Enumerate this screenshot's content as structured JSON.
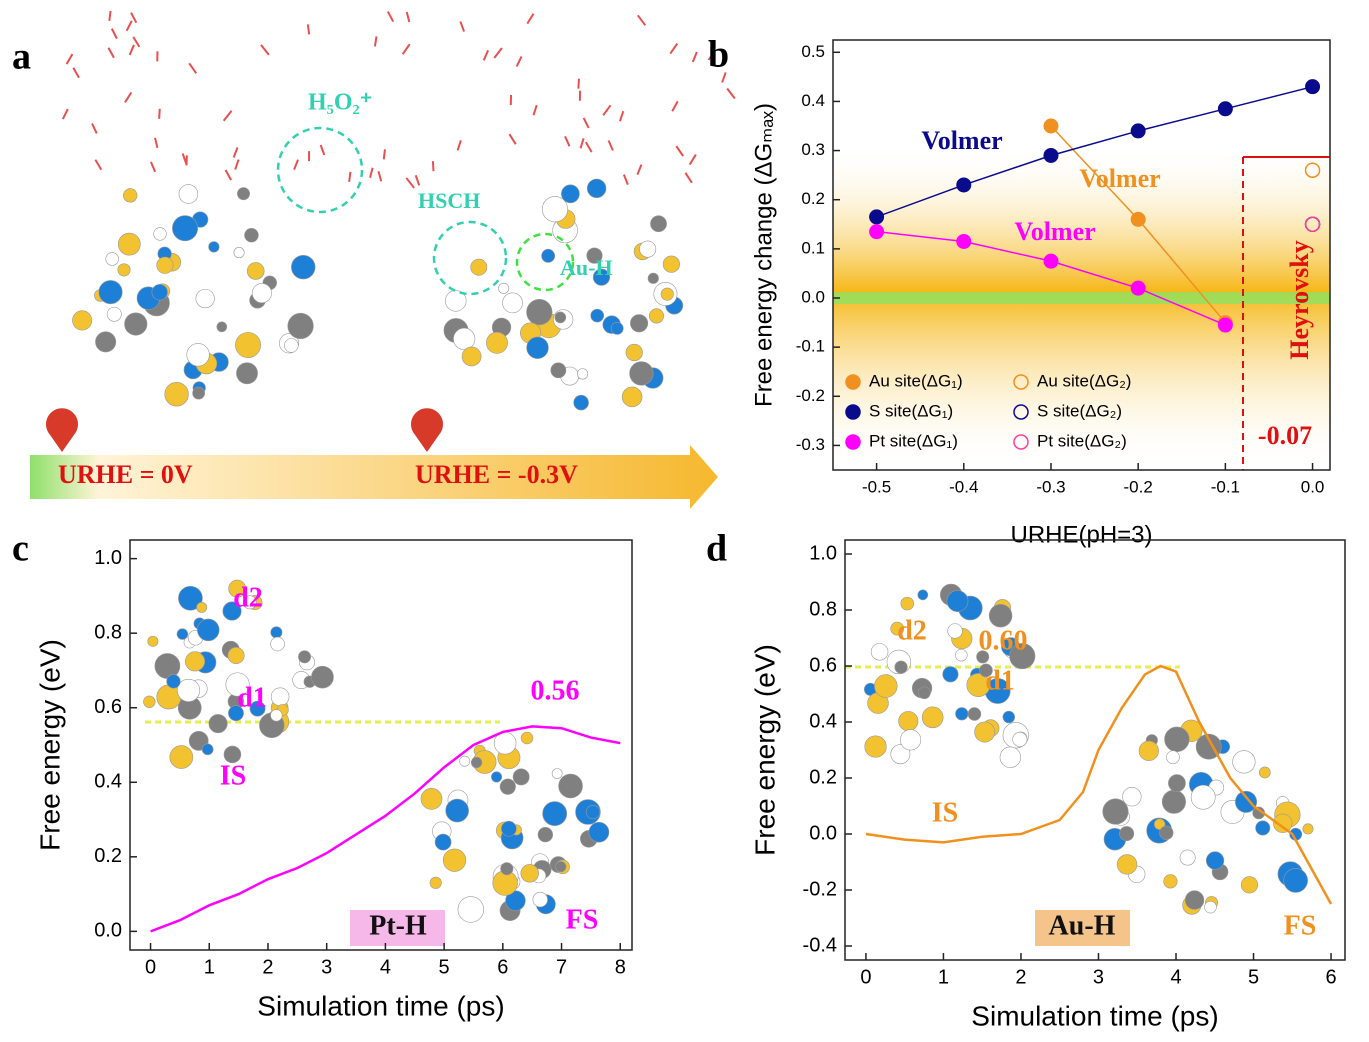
{
  "panel_a": {
    "label": "a",
    "texts": [
      "H₅O₂⁺",
      "HSCH",
      "Au-H",
      "URHE = 0V",
      "URHE = -0.3V"
    ]
  },
  "chart_data": [
    {
      "type": "line",
      "panel": "b",
      "y_label": "Free energy change (ΔGₘₐₓ)",
      "x_label": "URHE(pH=3)",
      "x": [
        -0.5,
        -0.4,
        -0.3,
        -0.2,
        -0.1,
        0.0
      ],
      "xlim": [
        -0.55,
        0.02
      ],
      "ylim": [
        -0.35,
        0.525
      ],
      "xticks": [
        -0.5,
        -0.4,
        -0.3,
        -0.2,
        -0.1,
        {
          "value": 0,
          "label": "0.0"
        }
      ],
      "yticks": [
        -0.3,
        -0.2,
        -0.1,
        {
          "value": 0,
          "label": "0.0"
        },
        0.1,
        0.2,
        0.3,
        0.4,
        0.5
      ],
      "series": [
        {
          "name": "Au site(ΔG₁)",
          "color": "#f0901e",
          "marker": "filled",
          "line": true,
          "values": [
            null,
            null,
            0.35,
            0.16,
            -0.05,
            null
          ]
        },
        {
          "name": "S site(ΔG₁)",
          "color": "#0a0a8c",
          "marker": "filled",
          "line": true,
          "values": [
            0.165,
            0.23,
            0.29,
            0.34,
            0.385,
            0.43
          ]
        },
        {
          "name": "Pt site(ΔG₁)",
          "color": "#ff00ff",
          "marker": "filled",
          "line": true,
          "values": [
            0.135,
            0.115,
            0.075,
            0.02,
            -0.055,
            null
          ]
        },
        {
          "name": "Au site(ΔG₂)",
          "color": "#f0901e",
          "marker": "open",
          "line": false,
          "values": [
            null,
            null,
            null,
            null,
            null,
            0.26
          ]
        },
        {
          "name": "S site(ΔG₂)",
          "color": "#0a0a8c",
          "marker": "open",
          "line": false,
          "values": [
            null,
            null,
            null,
            null,
            null,
            0.15
          ]
        },
        {
          "name": "Pt site(ΔG₂)",
          "color": "#ff3fa0",
          "marker": "open",
          "line": false,
          "values": [
            null,
            null,
            null,
            null,
            null,
            0.15
          ]
        }
      ],
      "annotations": [
        {
          "text": "Volmer",
          "color": "#0a0a8c"
        },
        {
          "text": "Volmer",
          "color": "#f0901e"
        },
        {
          "text": "Volmer",
          "color": "#ff00ff"
        },
        {
          "text": "Heyrovsky",
          "color": "#e01010"
        },
        {
          "text": "-0.07",
          "color": "#e01010"
        }
      ]
    },
    {
      "type": "line",
      "panel": "c",
      "y_label": "Free energy (eV)",
      "x_label": "Simulation time (ps)",
      "x": [
        0,
        0.5,
        1,
        1.5,
        2,
        2.5,
        3,
        3.5,
        4,
        4.5,
        5,
        5.5,
        6,
        6.5,
        7,
        7.5,
        8
      ],
      "xlim": [
        -0.35,
        8.2
      ],
      "ylim": [
        -0.05,
        1.05
      ],
      "xticks": [
        0,
        1,
        2,
        3,
        4,
        5,
        6,
        7,
        8
      ],
      "yticks": [
        {
          "value": 0,
          "label": "0.0"
        },
        0.2,
        0.4,
        0.6,
        0.8,
        {
          "value": 1,
          "label": "1.0"
        }
      ],
      "series": [
        {
          "name": null,
          "color": "#ff00ff",
          "values": [
            0,
            0.03,
            0.07,
            0.1,
            0.14,
            0.17,
            0.21,
            0.26,
            0.31,
            0.37,
            0.44,
            0.5,
            0.535,
            0.55,
            0.545,
            0.52,
            0.505
          ]
        }
      ],
      "annotations": [
        {
          "text": "0.56",
          "color": "#ff00ff"
        },
        {
          "text": "d2",
          "color": "#ff00ff"
        },
        {
          "text": "d1",
          "color": "#ff00ff"
        },
        {
          "text": "IS",
          "color": "#ff00ff"
        },
        {
          "text": "FS",
          "color": "#ff00ff"
        },
        {
          "text": "Pt-H",
          "color": "#111"
        }
      ]
    },
    {
      "type": "line",
      "panel": "d",
      "y_label": "Free energy (eV)",
      "x_label": "Simulation time (ps)",
      "x": [
        0,
        0.5,
        1,
        1.5,
        2,
        2.5,
        2.8,
        3,
        3.3,
        3.6,
        3.8,
        4,
        4.3,
        4.7,
        5,
        5.5,
        6
      ],
      "xlim": [
        -0.27,
        6.18
      ],
      "ylim": [
        -0.45,
        1.05
      ],
      "xticks": [
        0,
        1,
        2,
        3,
        4,
        5,
        6
      ],
      "yticks": [
        -0.4,
        -0.2,
        {
          "value": 0,
          "label": "0.0"
        },
        0.2,
        0.4,
        0.6,
        0.8,
        {
          "value": 1,
          "label": "1.0"
        }
      ],
      "series": [
        {
          "name": null,
          "color": "#f0901e",
          "values": [
            0,
            -0.02,
            -0.03,
            -0.01,
            0,
            0.05,
            0.15,
            0.3,
            0.45,
            0.57,
            0.6,
            0.58,
            0.4,
            0.2,
            0.1,
            0,
            -0.25
          ]
        }
      ],
      "annotations": [
        {
          "text": "0.60",
          "color": "#f0901e"
        },
        {
          "text": "d2",
          "color": "#f0901e"
        },
        {
          "text": "d1",
          "color": "#f0901e"
        },
        {
          "text": "IS",
          "color": "#f0901e"
        },
        {
          "text": "FS",
          "color": "#f0901e"
        },
        {
          "text": "Au-H",
          "color": "#111"
        }
      ]
    }
  ]
}
